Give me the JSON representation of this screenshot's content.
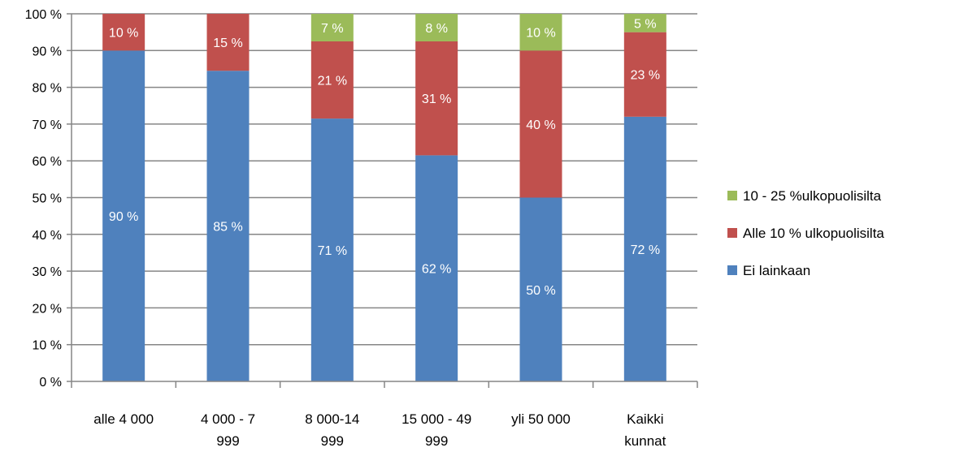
{
  "chart_data": {
    "type": "bar",
    "stacked": true,
    "categories": [
      [
        "alle 4 000"
      ],
      [
        "4 000 - 7",
        "999"
      ],
      [
        "8 000-14",
        "999"
      ],
      [
        "15 000 - 49",
        "999"
      ],
      [
        "yli 50 000"
      ],
      [
        "Kaikki",
        "kunnat"
      ]
    ],
    "series": [
      {
        "name": "Ei lainkaan",
        "color": "#4f81bd",
        "values": [
          90,
          84.5,
          71.5,
          61.5,
          50,
          72
        ],
        "labels": [
          "90 %",
          "85 %",
          "71 %",
          "62 %",
          "50 %",
          "72 %"
        ]
      },
      {
        "name": "Alle 10 % ulkopuolisilta",
        "color": "#c0504d",
        "values": [
          10,
          15.5,
          21,
          31,
          40,
          23
        ],
        "labels": [
          "10 %",
          "15 %",
          "21 %",
          "31 %",
          "40 %",
          "23 %"
        ]
      },
      {
        "name": "10 - 25 %ulkopuolisilta",
        "color": "#9bbb59",
        "values": [
          0,
          0,
          7.5,
          7.5,
          10,
          5
        ],
        "labels": [
          "",
          "",
          "7 %",
          "8 %",
          "10 %",
          "5 %"
        ]
      }
    ],
    "yticks": [
      "0 %",
      "10 %",
      "20 %",
      "30 %",
      "40 %",
      "50 %",
      "60 %",
      "70 %",
      "80 %",
      "90 %",
      "100 %"
    ],
    "ylim": [
      0,
      100
    ],
    "grid": true,
    "legend": "right",
    "legend_order": [
      2,
      1,
      0
    ]
  }
}
